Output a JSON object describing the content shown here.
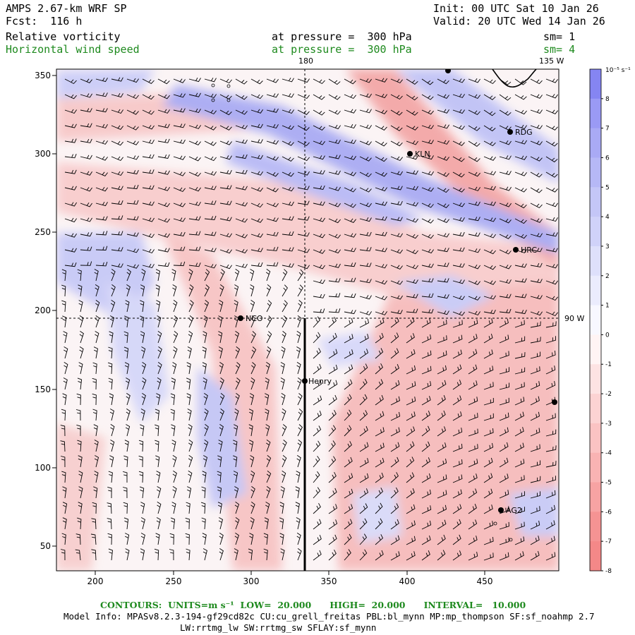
{
  "header": {
    "model": "AMPS 2.67-km WRF SP",
    "init": "Init: 00 UTC Sat 10 Jan 26",
    "fcst": "Fcst:  116 h",
    "valid": "Valid: 20 UTC Wed 14 Jan 26",
    "field1": "Relative vorticity",
    "pressure1": "at pressure =  300 hPa",
    "sm1": "sm= 1",
    "field2": "Horizontal wind speed",
    "pressure2": "at pressure =  300 hPa",
    "sm2": "sm= 4"
  },
  "map": {
    "meridian_label_top": "180",
    "meridian_label_top2": "135 W",
    "meridian_label_right": "90 W",
    "x_ticks": [
      "200",
      "250",
      "300",
      "350",
      "400",
      "450"
    ],
    "y_ticks": [
      "50",
      "100",
      "150",
      "200",
      "250",
      "300",
      "350"
    ],
    "stations": [
      {
        "label": "RDG"
      },
      {
        "label": "KLN"
      },
      {
        "label": "HRC"
      },
      {
        "label": "NCO"
      },
      {
        "label": "Henry"
      },
      {
        "label": "AG2"
      }
    ]
  },
  "colorbar": {
    "unit": "10⁻⁵ s⁻¹",
    "labels": [
      "8",
      "7",
      "6",
      "5",
      "4",
      "3",
      "2",
      "1",
      "0",
      "-1",
      "-2",
      "-3",
      "-4",
      "-5",
      "-6",
      "-7",
      "-8"
    ],
    "colors": [
      "#8585f2",
      "#9a9af5",
      "#a9aaf5",
      "#b6b8f6",
      "#c4c6f7",
      "#d0d2f9",
      "#dee0fb",
      "#ebecfd",
      "#f8f8ff",
      "#fff4f4",
      "#fde3e3",
      "#fcd3d3",
      "#fbc3c3",
      "#f9b3b3",
      "#f7a3a3",
      "#f59393",
      "#f48888"
    ]
  },
  "footer": {
    "contours": "CONTOURS:  UNITS=m s⁻¹  LOW=  20.000      HIGH=  20.000      INTERVAL=   10.000",
    "model_info": "Model Info: MPASv8.2.3-194-gf29cd82c CU:cu_grell_freitas PBL:bl_mynn MP:mp_thompson SF:sf_noahmp 2.7",
    "model_info2": "LW:rrtmg_lw SW:rrtmg_sw SFLAY:sf_mynn"
  }
}
